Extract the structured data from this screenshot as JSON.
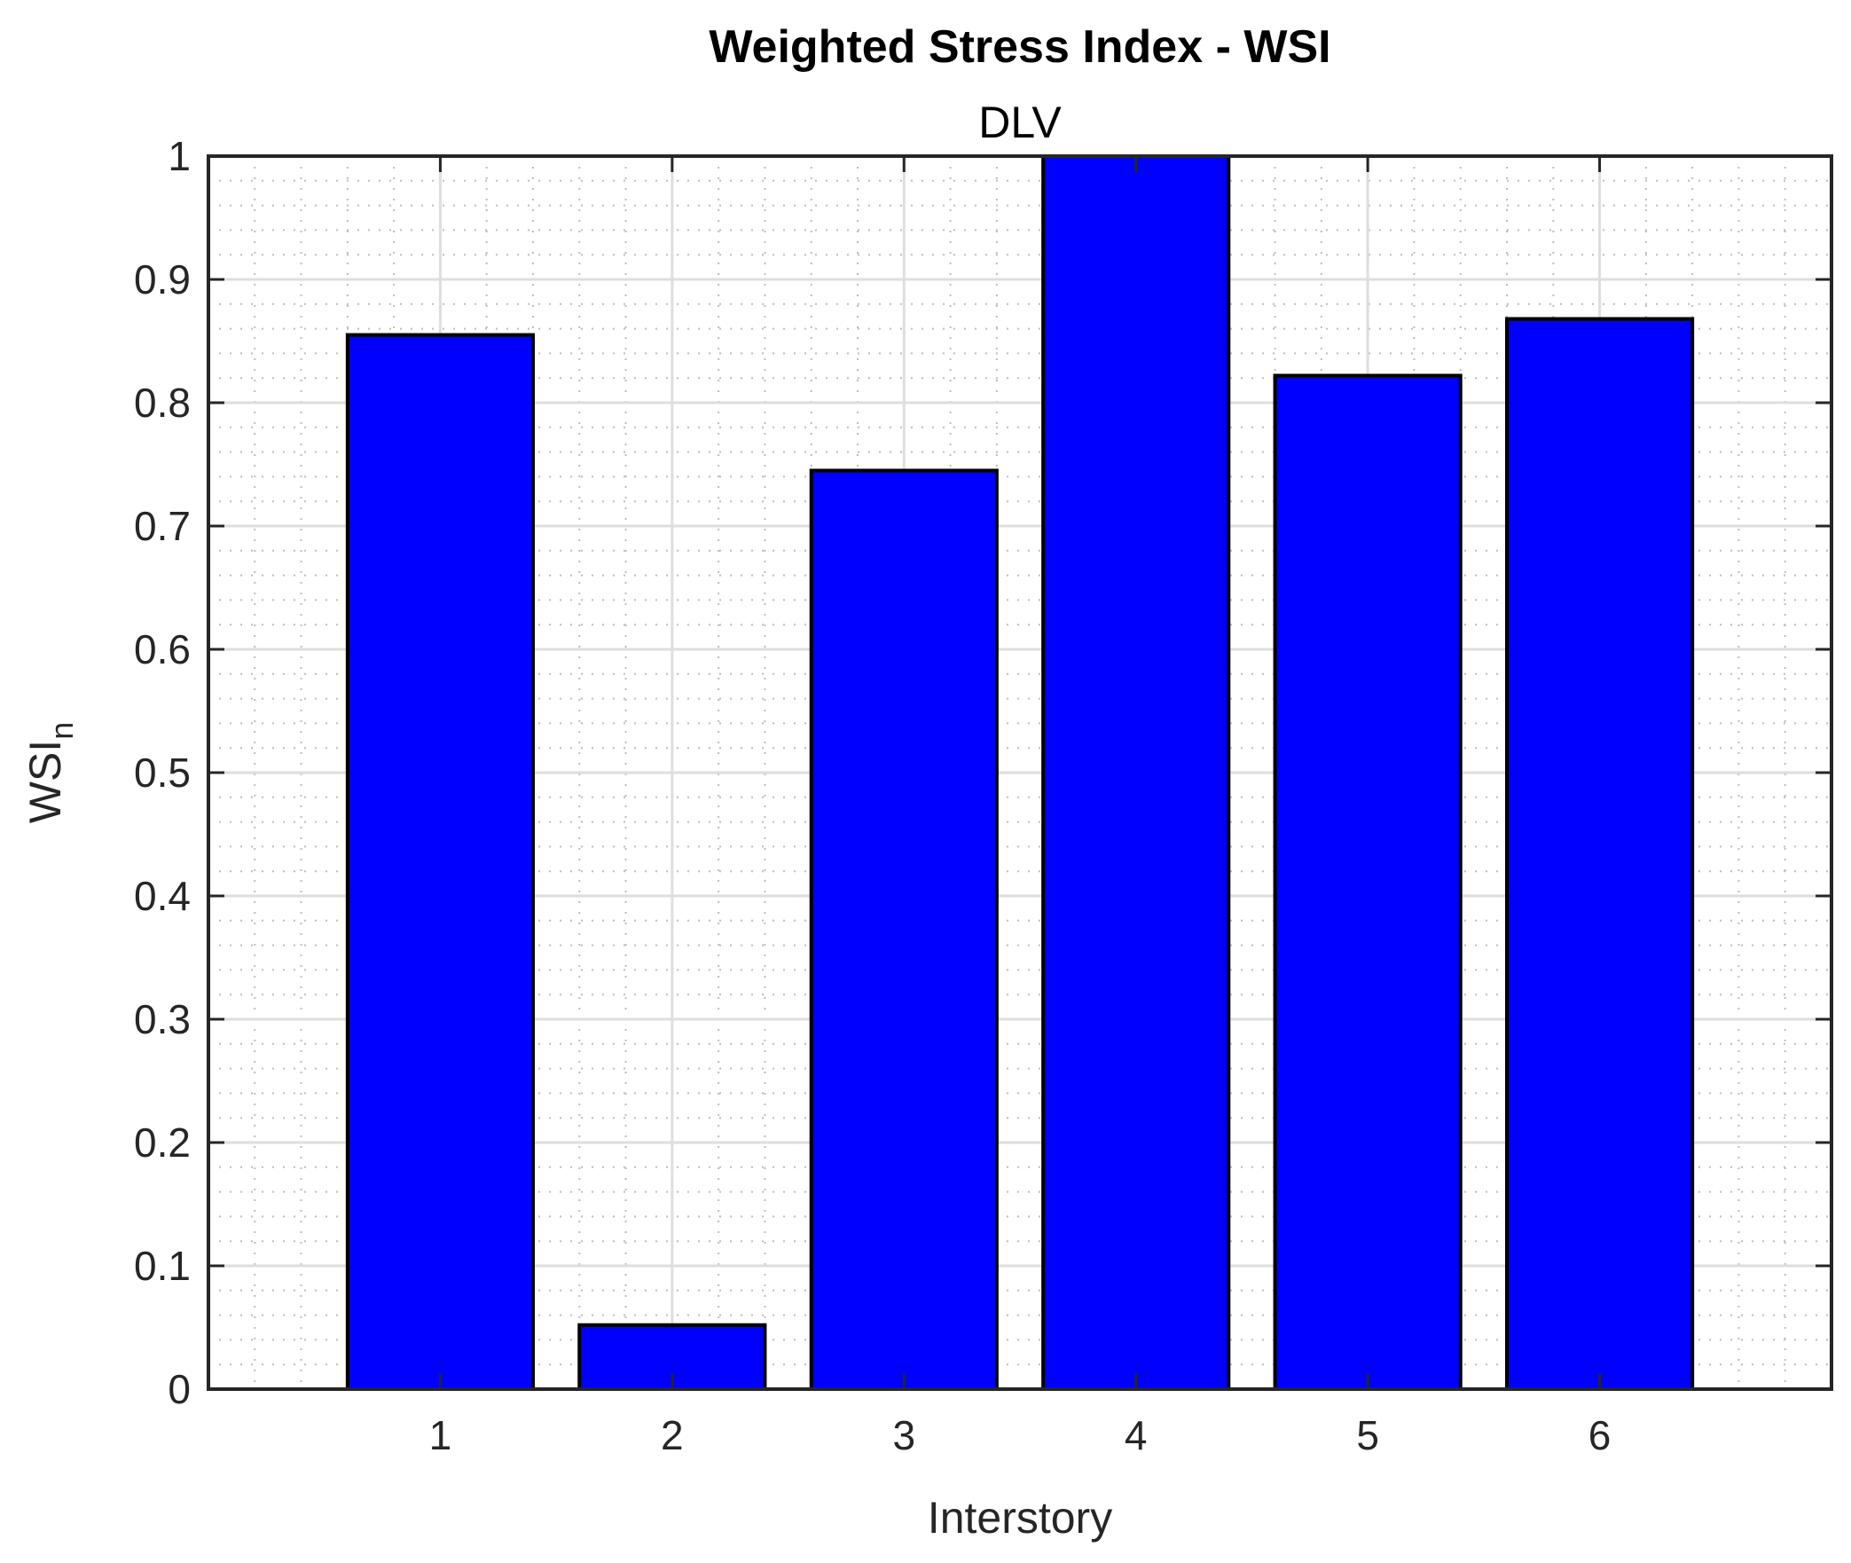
{
  "chart_data": {
    "type": "bar",
    "title": "Weighted Stress Index - WSI",
    "subtitle": "DLV",
    "xlabel": "Interstory",
    "ylabel": "WSI",
    "ylabel_subscript": "n",
    "categories": [
      "1",
      "2",
      "3",
      "4",
      "5",
      "6"
    ],
    "values": [
      0.855,
      0.052,
      0.745,
      1.0,
      0.822,
      0.868
    ],
    "xlim": [
      0,
      7
    ],
    "ylim": [
      0,
      1
    ],
    "yticks": [
      0,
      0.1,
      0.2,
      0.3,
      0.4,
      0.5,
      0.6,
      0.7,
      0.8,
      0.9,
      1
    ],
    "ytick_labels": [
      "0",
      "0.1",
      "0.2",
      "0.3",
      "0.4",
      "0.5",
      "0.6",
      "0.7",
      "0.8",
      "0.9",
      "1"
    ],
    "grid": true,
    "minor_grid": true,
    "bar_color": "#0000ff",
    "edge_color": "#000000"
  }
}
